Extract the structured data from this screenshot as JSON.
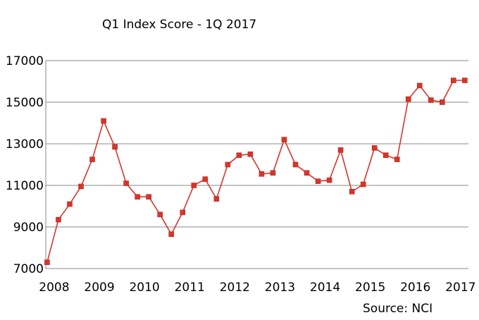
{
  "chart_data": {
    "type": "line",
    "title": "Q1 Index  Score - 1Q 2017",
    "source": "Source: NCI",
    "xlabel": "",
    "ylabel": "",
    "ylim": [
      7000,
      17000
    ],
    "yticks": [
      7000,
      9000,
      11000,
      13000,
      15000,
      17000
    ],
    "ytick_labels": [
      "7000",
      "9000",
      "11000",
      "13000",
      "15000",
      "17000"
    ],
    "xticks": [
      2008,
      2009,
      2010,
      2011,
      2012,
      2013,
      2014,
      2015,
      2016,
      2017
    ],
    "xtick_labels": [
      "2008",
      "2009",
      "2010",
      "2011",
      "2012",
      "2013",
      "2014",
      "2015",
      "2016",
      "2017"
    ],
    "grid": true,
    "series_color": "#d7352b",
    "series": [
      {
        "x": [
          2008.0,
          2008.25,
          2008.5,
          2008.75,
          2009.0,
          2009.25,
          2009.5,
          2009.75,
          2010.0,
          2010.25,
          2010.5,
          2010.75,
          2011.0,
          2011.25,
          2011.5,
          2011.75,
          2012.0,
          2012.25,
          2012.5,
          2012.75,
          2013.0,
          2013.25,
          2013.5,
          2013.75,
          2014.0,
          2014.25,
          2014.5,
          2014.75,
          2015.0,
          2015.25,
          2015.5,
          2015.75,
          2016.0,
          2016.25,
          2016.5,
          2016.75,
          2017.0,
          2017.25
        ],
        "values": [
          7300,
          9350,
          10100,
          10950,
          12250,
          14100,
          12850,
          11100,
          10450,
          10450,
          9600,
          8650,
          9700,
          11000,
          11300,
          10350,
          12000,
          12450,
          12500,
          11550,
          11600,
          13200,
          12000,
          11600,
          11200,
          11250,
          12700,
          10700,
          11050,
          12800,
          12450,
          12250,
          15150,
          15800,
          15100,
          15000,
          16050,
          16050
        ]
      }
    ]
  }
}
